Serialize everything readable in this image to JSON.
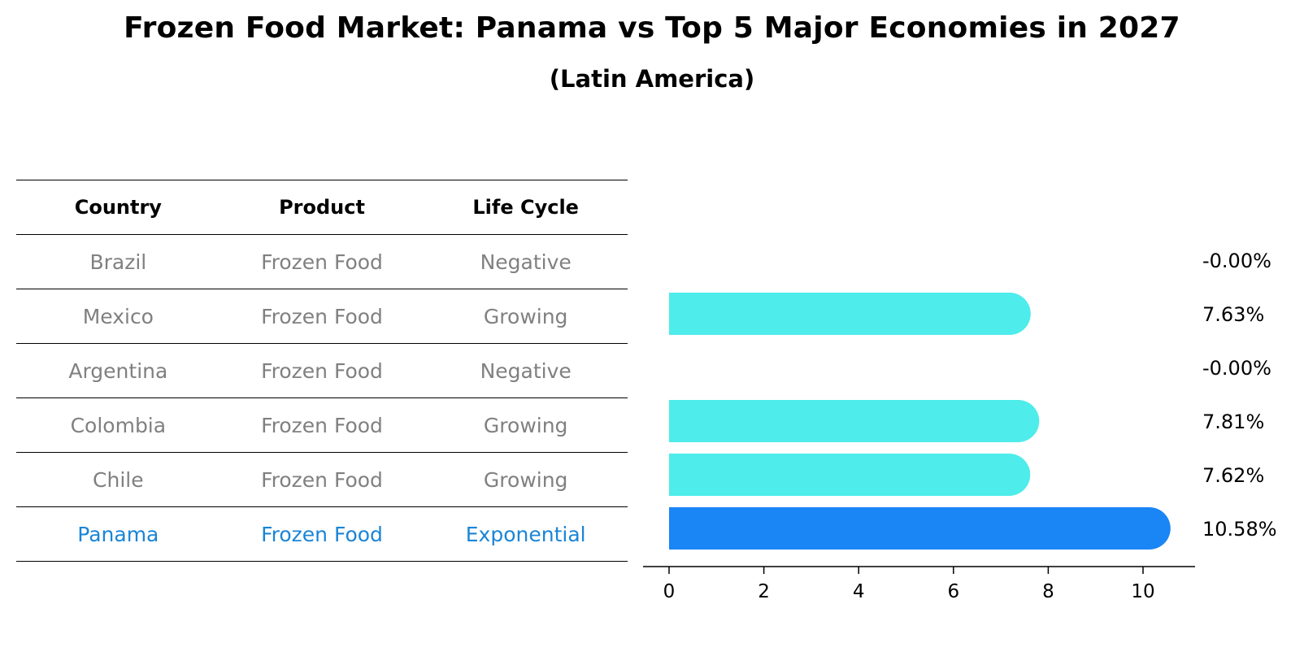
{
  "title": "Frozen Food Market: Panama vs Top 5 Major Economies in 2027",
  "subtitle": "(Latin America)",
  "table": {
    "headers": [
      "Country",
      "Product",
      "Life Cycle"
    ],
    "rows": [
      [
        "Brazil",
        "Frozen Food",
        "Negative"
      ],
      [
        "Mexico",
        "Frozen Food",
        "Growing"
      ],
      [
        "Argentina",
        "Frozen Food",
        "Negative"
      ],
      [
        "Colombia",
        "Frozen Food",
        "Growing"
      ],
      [
        "Chile",
        "Frozen Food",
        "Growing"
      ],
      [
        "Panama",
        "Frozen Food",
        "Exponential"
      ]
    ],
    "highlight_row": 5,
    "highlight_color": "#1a85d6",
    "text_color": "#808080"
  },
  "chart_data": {
    "type": "bar",
    "orientation": "horizontal",
    "categories": [
      "Brazil",
      "Mexico",
      "Argentina",
      "Colombia",
      "Chile",
      "Panama"
    ],
    "values": [
      -0.0,
      7.63,
      -0.0,
      7.81,
      7.62,
      10.58
    ],
    "value_labels": [
      "-0.00%",
      "7.63%",
      "-0.00%",
      "7.81%",
      "7.62%",
      "10.58%"
    ],
    "xlim": [
      0,
      11
    ],
    "xticks": [
      0,
      2,
      4,
      6,
      8,
      10
    ],
    "bar_color": "#4eeceb",
    "highlight_color": "#1a85f5",
    "highlight_index": 5,
    "grid": false
  }
}
